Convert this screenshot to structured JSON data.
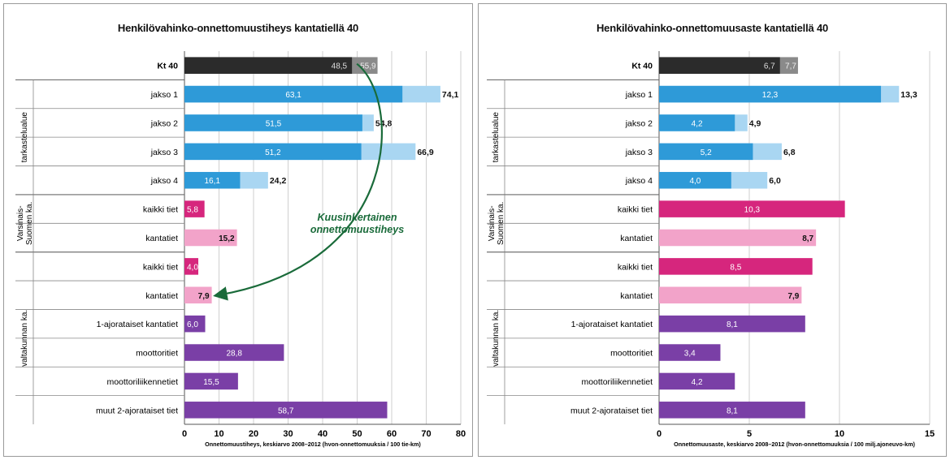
{
  "chart_data": [
    {
      "type": "bar",
      "title": "Henkilövahinko-onnettomuustiheys kantatiellä 40",
      "xlabel": "Onnettomuustiheys, keskiarvo 2008–2012 (hvon-onnettomuuksia / 100 tie-km)",
      "xlim": [
        0,
        80
      ],
      "xticks": [
        "0",
        "10",
        "20",
        "30",
        "40",
        "50",
        "60",
        "70",
        "80"
      ],
      "grid": true,
      "categories": [
        "Kt 40",
        "jakso 1",
        "jakso 2",
        "jakso 3",
        "jakso 4",
        "kaikki tiet",
        "kantatiet",
        "kaikki tiet",
        "kantatiet",
        "1-ajorataiset kantatiet",
        "moottoritiet",
        "moottoriliikennetiet",
        "muut 2-ajorataiset tiet"
      ],
      "groups": [
        {
          "label": "tarkastelualue",
          "categories": [
            "jakso 1",
            "jakso 2",
            "jakso 3",
            "jakso 4"
          ]
        },
        {
          "label": "Varsinais-Suomen ka.",
          "categories": [
            "kaikki tiet",
            "kantatiet"
          ]
        },
        {
          "label": "valtakunnan ka.",
          "categories": [
            "kaikki tiet",
            "kantatiet",
            "1-ajorataiset kantatiet",
            "moottoritiet",
            "moottoriliikennetiet",
            "muut 2-ajorataiset tiet"
          ]
        }
      ],
      "series": [
        {
          "values": [
            48.5,
            63.1,
            51.5,
            51.2,
            16.1,
            5.8,
            15.2,
            4.0,
            7.9,
            6.0,
            28.8,
            15.5,
            58.7
          ],
          "labels": [
            "48,5",
            "63,1",
            "51,5",
            "51,2",
            "16,1",
            "5,8",
            "15,2",
            "4,0",
            "7,9",
            "6,0",
            "28,8",
            "15,5",
            "58,7"
          ]
        },
        {
          "values": [
            55.9,
            74.1,
            54.8,
            66.9,
            24.2,
            null,
            null,
            null,
            null,
            null,
            null,
            null,
            null
          ],
          "labels": [
            "55,9",
            "74,1",
            "54,8",
            "66,9",
            "24,2",
            "",
            "",
            "",
            "",
            "",
            "",
            "",
            ""
          ]
        }
      ],
      "annotation": {
        "text_lines": [
          "Kuusinkertainen",
          "onnettomuustiheys"
        ],
        "from": "Kt 40",
        "to": "kantatiet (valtakunnan ka.)",
        "color": "#1a6b3a"
      },
      "colors": {
        "kt40_main": "#2b2b2b",
        "kt40_ext": "#8a8a8a",
        "section_main": "#2e9ad8",
        "section_ext": "#a9d6f2",
        "magenta": "#d6267d",
        "pink": "#f2a3c9",
        "purple": "#7a3fa6"
      },
      "bar_colors": [
        "kt40",
        "blue",
        "blue",
        "blue",
        "blue",
        "magenta",
        "pink",
        "magenta",
        "pink",
        "purple",
        "purple",
        "purple",
        "purple"
      ]
    },
    {
      "type": "bar",
      "title": "Henkilövahinko-onnettomuusaste kantatiellä 40",
      "xlabel": "Onnettomuusaste, keskiarvo 2008–2012 (hvon-onnettomuuksia / 100 milj.ajoneuvo-km)",
      "xlim": [
        0,
        15
      ],
      "xticks": [
        "0",
        "5",
        "10",
        "15"
      ],
      "grid": true,
      "categories": [
        "Kt 40",
        "jakso 1",
        "jakso 2",
        "jakso 3",
        "jakso 4",
        "kaikki tiet",
        "kantatiet",
        "kaikki tiet",
        "kantatiet",
        "1-ajorataiset kantatiet",
        "moottoritiet",
        "moottoriliikennetiet",
        "muut 2-ajorataiset tiet"
      ],
      "groups": [
        {
          "label": "tarkastelualue",
          "categories": [
            "jakso 1",
            "jakso 2",
            "jakso 3",
            "jakso 4"
          ]
        },
        {
          "label": "Varsinais-Suomen ka.",
          "categories": [
            "kaikki tiet",
            "kantatiet"
          ]
        },
        {
          "label": "valtakunnan ka.",
          "categories": [
            "kaikki tiet",
            "kantatiet",
            "1-ajorataiset kantatiet",
            "moottoritiet",
            "moottoriliikennetiet",
            "muut 2-ajorataiset tiet"
          ]
        }
      ],
      "series": [
        {
          "values": [
            6.7,
            12.3,
            4.2,
            5.2,
            4.0,
            10.3,
            8.7,
            8.5,
            7.9,
            8.1,
            3.4,
            4.2,
            8.1
          ],
          "labels": [
            "6,7",
            "12,3",
            "4,2",
            "5,2",
            "4,0",
            "10,3",
            "8,7",
            "8,5",
            "7,9",
            "8,1",
            "3,4",
            "4,2",
            "8,1"
          ]
        },
        {
          "values": [
            7.7,
            13.3,
            4.9,
            6.8,
            6.0,
            null,
            null,
            null,
            null,
            null,
            null,
            null,
            null
          ],
          "labels": [
            "7,7",
            "13,3",
            "4,9",
            "6,8",
            "6,0",
            "",
            "",
            "",
            "",
            "",
            "",
            "",
            ""
          ]
        }
      ],
      "colors": {
        "kt40_main": "#2b2b2b",
        "kt40_ext": "#8a8a8a",
        "section_main": "#2e9ad8",
        "section_ext": "#a9d6f2",
        "magenta": "#d6267d",
        "pink": "#f2a3c9",
        "purple": "#7a3fa6"
      },
      "bar_colors": [
        "kt40",
        "blue",
        "blue",
        "blue",
        "blue",
        "magenta",
        "pink",
        "magenta",
        "pink",
        "purple",
        "purple",
        "purple",
        "purple"
      ]
    }
  ]
}
